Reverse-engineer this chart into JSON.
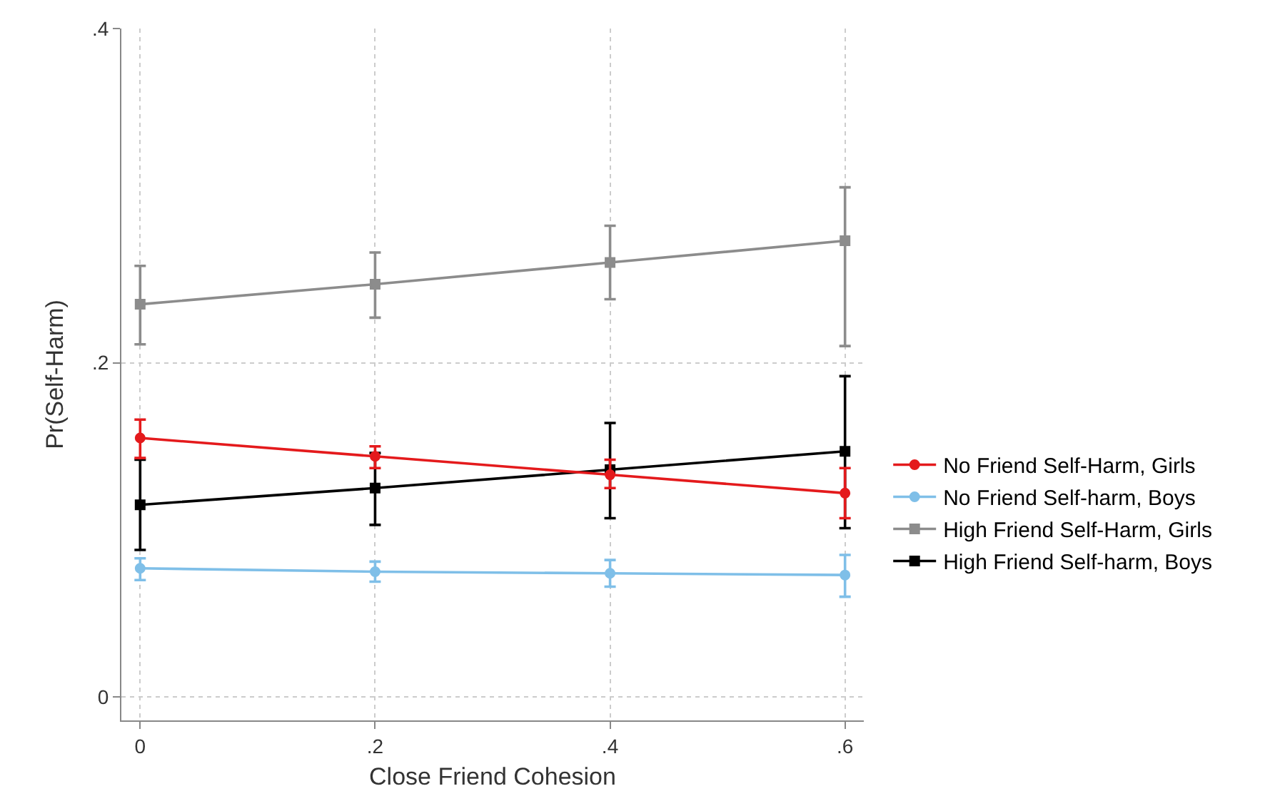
{
  "chart_data": {
    "type": "line",
    "xlabel": "Close Friend Cohesion",
    "ylabel": "Pr(Self-Harm)",
    "x": [
      0,
      0.2,
      0.4,
      0.6
    ],
    "xlim": [
      -0.016,
      0.616
    ],
    "xticks": [
      {
        "value": 0,
        "label": "0"
      },
      {
        "value": 0.2,
        "label": ".2"
      },
      {
        "value": 0.4,
        "label": ".4"
      },
      {
        "value": 0.6,
        "label": ".6"
      }
    ],
    "ylim": [
      -0.014,
      0.4
    ],
    "yticks": [
      {
        "value": 0,
        "label": "0"
      },
      {
        "value": 0.2,
        "label": ".2"
      },
      {
        "value": 0.4,
        "label": ".4"
      }
    ],
    "grid": true,
    "legend": "right",
    "line_style": "solid",
    "series": [
      {
        "name": "No Friend Self-Harm, Girls",
        "color": "#e41a1c",
        "marker": "circle",
        "values": [
          0.155,
          0.144,
          0.133,
          0.122
        ],
        "errors": [
          [
            0.143,
            0.166
          ],
          [
            0.137,
            0.15
          ],
          [
            0.125,
            0.142
          ],
          [
            0.107,
            0.137
          ]
        ]
      },
      {
        "name": "No Friend Self-harm, Boys",
        "color": "#7fbfe8",
        "marker": "circle",
        "values": [
          0.077,
          0.075,
          0.074,
          0.073
        ],
        "errors": [
          [
            0.07,
            0.083
          ],
          [
            0.069,
            0.081
          ],
          [
            0.066,
            0.082
          ],
          [
            0.06,
            0.085
          ]
        ]
      },
      {
        "name": "High Friend Self-Harm, Girls",
        "color": "#8c8c8c",
        "marker": "square",
        "values": [
          0.235,
          0.247,
          0.26,
          0.273
        ],
        "errors": [
          [
            0.211,
            0.258
          ],
          [
            0.227,
            0.266
          ],
          [
            0.238,
            0.282
          ],
          [
            0.21,
            0.305
          ]
        ]
      },
      {
        "name": "High Friend Self-harm, Boys",
        "color": "#000000",
        "marker": "square",
        "values": [
          0.115,
          0.125,
          0.136,
          0.147
        ],
        "errors": [
          [
            0.088,
            0.142
          ],
          [
            0.103,
            0.146
          ],
          [
            0.107,
            0.164
          ],
          [
            0.101,
            0.192
          ]
        ]
      }
    ]
  }
}
